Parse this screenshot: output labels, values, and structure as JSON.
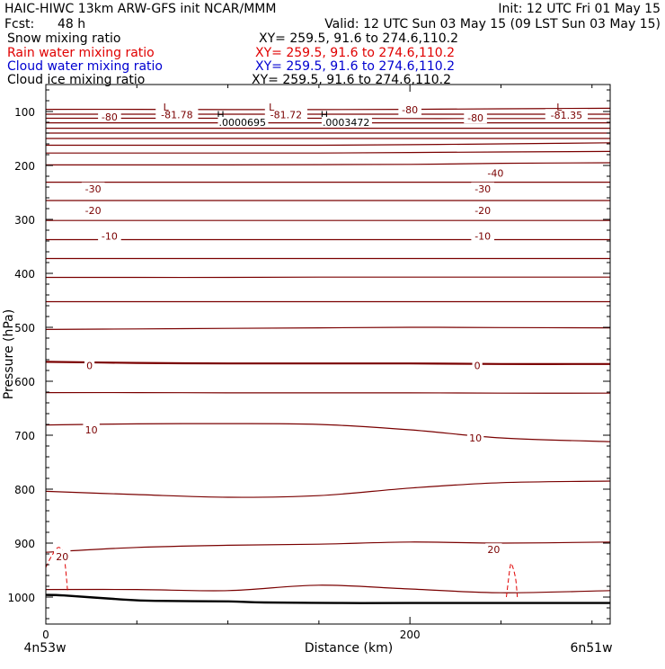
{
  "header": {
    "title": "HAIC-HIWC 13km ARW-GFS init    NCAR/MMM",
    "init": "Init: 12 UTC Fri 01 May 15",
    "fcst_label": "Fcst:",
    "fcst_value": "48 h",
    "valid": "Valid: 12 UTC Sun 03 May 15 (09 LST Sun 03 May 15)",
    "fields": [
      {
        "name": "Snow mixing ratio",
        "xy": "XY= 259.5, 91.6 to 274.6,110.2",
        "color": "#000000"
      },
      {
        "name": "Rain water mixing ratio",
        "xy": "XY= 259.5, 91.6 to 274.6,110.2",
        "color": "#e00000"
      },
      {
        "name": "Cloud water mixing ratio",
        "xy": "XY= 259.5, 91.6 to 274.6,110.2",
        "color": "#0000d0"
      },
      {
        "name": "Cloud ice mixing ratio",
        "xy": "XY= 259.5, 91.6 to 274.6,110.2",
        "color": "#000000"
      }
    ]
  },
  "chart_data": {
    "type": "line",
    "subtype": "vertical cross-section contour",
    "xlabel": "Distance (km)",
    "ylabel": "Pressure (hPa)",
    "xlim": [
      0,
      310
    ],
    "ylim": [
      1050,
      50
    ],
    "y_scale": "linear, inverted",
    "xticks": [
      0,
      200
    ],
    "yticks": [
      100,
      200,
      300,
      400,
      500,
      600,
      700,
      800,
      900,
      1000
    ],
    "x_end_labels": {
      "left": "4n53w",
      "right": "6n51w"
    },
    "colors": {
      "isotherm": "#7a0000",
      "terrain": "#000000",
      "rain": "#e00000",
      "axes": "#000000"
    },
    "contour_lines": [
      {
        "p": [
          96,
          96,
          96.5,
          96.5,
          96,
          95,
          94
        ]
      },
      {
        "p": [
          105,
          105,
          105,
          105,
          105,
          105,
          105
        ]
      },
      {
        "p": [
          112.5,
          112.5,
          112.5,
          112.5,
          113,
          113,
          113
        ]
      },
      {
        "p": [
          121,
          121,
          121,
          121,
          121,
          121,
          121
        ]
      },
      {
        "p": [
          131,
          131,
          131,
          131,
          131,
          131,
          131
        ]
      },
      {
        "p": [
          140,
          140,
          140,
          140,
          140,
          140,
          140
        ]
      },
      {
        "p": [
          150,
          150,
          150,
          150,
          150,
          150,
          150
        ]
      },
      {
        "p": [
          162.5,
          162.5,
          162.5,
          162.5,
          161.5,
          160,
          158
        ]
      },
      {
        "p": [
          177,
          177,
          177,
          177,
          176,
          175,
          174
        ]
      },
      {
        "p": [
          199,
          199,
          199,
          198.5,
          198,
          196,
          195
        ]
      },
      {
        "p": [
          231,
          231,
          231,
          231,
          231,
          231,
          231
        ]
      },
      {
        "p": [
          265,
          265,
          265,
          265,
          265,
          265,
          265
        ]
      },
      {
        "p": [
          302,
          302,
          302,
          302,
          302,
          302,
          302
        ]
      },
      {
        "p": [
          337.5,
          337.5,
          337.5,
          337.5,
          337.5,
          337.5,
          337.5
        ]
      },
      {
        "p": [
          372.5,
          372.5,
          372.5,
          372.5,
          372.5,
          372.5,
          372.5
        ]
      },
      {
        "p": [
          407.5,
          407.5,
          407.5,
          407,
          407,
          407,
          407
        ]
      },
      {
        "p": [
          452.5,
          452.5,
          452.5,
          452.5,
          452.5,
          452.5,
          452.5
        ]
      },
      {
        "p": [
          504,
          503,
          502,
          501,
          500,
          500.5,
          501
        ]
      },
      {
        "p": [
          564,
          566,
          567,
          567,
          567,
          568,
          568
        ]
      },
      {
        "p": [
          621,
          621,
          621.5,
          621.5,
          621.5,
          622,
          622
        ]
      },
      {
        "p": [
          681,
          679,
          678.5,
          680,
          690,
          705,
          712
        ]
      },
      {
        "p": [
          804,
          810,
          815,
          812,
          798,
          788,
          785
        ]
      },
      {
        "p": [
          917,
          908,
          904,
          902,
          898,
          900,
          898
        ]
      },
      {
        "p": [
          986,
          986,
          988,
          978,
          985,
          992,
          988
        ]
      }
    ],
    "contour_x": [
      0,
      50,
      100,
      150,
      200,
      250,
      310
    ],
    "contour_labels": [
      {
        "text": "-80",
        "x": 35,
        "p": 110
      },
      {
        "text": "-81.78",
        "x": 72,
        "p": 106
      },
      {
        "text": "-81.72",
        "x": 132,
        "p": 106
      },
      {
        "text": "-80",
        "x": 200,
        "p": 97
      },
      {
        "text": "-80",
        "x": 236,
        "p": 112
      },
      {
        "text": "-81.35",
        "x": 286,
        "p": 107
      },
      {
        "text": "-40",
        "x": 247,
        "p": 214
      },
      {
        "text": "-30",
        "x": 26,
        "p": 243
      },
      {
        "text": "-30",
        "x": 240,
        "p": 243
      },
      {
        "text": "-20",
        "x": 26,
        "p": 283
      },
      {
        "text": "-20",
        "x": 240,
        "p": 283
      },
      {
        "text": "-10",
        "x": 35,
        "p": 331
      },
      {
        "text": "-10",
        "x": 240,
        "p": 331
      },
      {
        "text": "0",
        "x": 24,
        "p": 571
      },
      {
        "text": "0",
        "x": 237,
        "p": 571
      },
      {
        "text": "10",
        "x": 25,
        "p": 690
      },
      {
        "text": "10",
        "x": 236,
        "p": 705
      },
      {
        "text": "20",
        "x": 9,
        "p": 925
      },
      {
        "text": "20",
        "x": 246,
        "p": 912
      }
    ],
    "extrema": [
      {
        "symbol": "L",
        "x": 66,
        "p": 92
      },
      {
        "symbol": "L",
        "x": 124,
        "p": 92
      },
      {
        "symbol": "L",
        "x": 282,
        "p": 92
      },
      {
        "symbol": "H",
        "x": 96,
        "p": 106,
        "value": ".0000695"
      },
      {
        "symbol": "H",
        "x": 153,
        "p": 106,
        "value": ".0003472"
      }
    ],
    "terrain": {
      "x": [
        0,
        10,
        40,
        60,
        100,
        120,
        160,
        200,
        250,
        270,
        310
      ],
      "p": [
        996,
        997,
        1004,
        1007,
        1008,
        1010,
        1011,
        1011,
        1011,
        1011,
        1011
      ]
    },
    "rain_contours": [
      {
        "x": [
          0,
          3,
          7,
          10,
          12
        ],
        "p": [
          945,
          925,
          908,
          925,
          990
        ]
      },
      {
        "x": [
          253,
          255,
          256,
          258,
          259
        ],
        "p": [
          1000,
          945,
          940,
          965,
          1000
        ]
      }
    ]
  }
}
